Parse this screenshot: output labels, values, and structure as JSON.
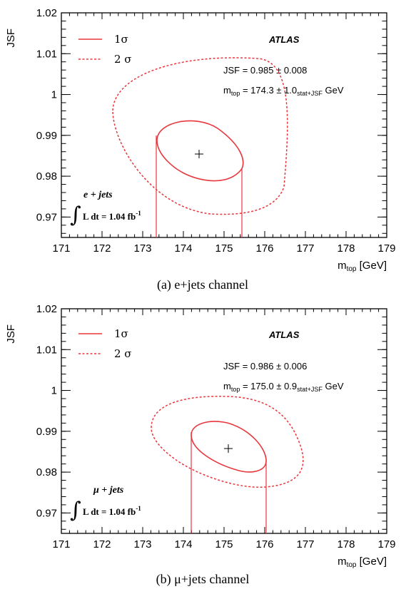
{
  "chart_data": [
    {
      "type": "contour",
      "panel": "a",
      "xlabel": "m",
      "xlabel_sub": "top",
      "xlabel_unit": " [GeV]",
      "ylabel": "JSF",
      "xlim": [
        171,
        179
      ],
      "ylim": [
        0.965,
        1.02
      ],
      "xticks": [
        "171",
        "172",
        "173",
        "174",
        "175",
        "176",
        "177",
        "178",
        "179"
      ],
      "yticks": [
        "0.97",
        "0.98",
        "0.99",
        "1",
        "1.01",
        "1.02"
      ],
      "experiment": "ATLAS",
      "legend": {
        "one_sigma": "1σ",
        "two_sigma": "2 σ"
      },
      "jsf_text": "JSF = 0.985 ± 0.008",
      "mtop_prefix": "m",
      "mtop_sub": "top",
      "mtop_value": " = 174.3 ± 1.0",
      "mtop_sub2": "stat+JSF",
      "mtop_unit": " GeV",
      "channel": "e + jets",
      "lumi_prefix": "L dt = 1.04 fb",
      "lumi_sup": "-1",
      "caption": "(a) e+jets channel",
      "best_fit": {
        "mtop": 174.3,
        "jsf": 0.985
      },
      "contours": [
        {
          "name": "1σ",
          "center": [
            174.3,
            0.9855
          ],
          "points": [
            [
              173.3,
              0.9855
            ],
            [
              173.6,
              0.9905
            ],
            [
              174.0,
              0.9925
            ],
            [
              174.6,
              0.991
            ],
            [
              175.3,
              0.9815
            ],
            [
              175.0,
              0.979
            ],
            [
              174.5,
              0.978
            ],
            [
              174.0,
              0.98
            ],
            [
              173.3,
              0.9855
            ]
          ],
          "mtop_interval": [
            173.3,
            175.3
          ]
        },
        {
          "name": "2 σ",
          "center": [
            174.3,
            0.985
          ],
          "points": [
            [
              172.3,
              0.9905
            ],
            [
              173.2,
              0.9995
            ],
            [
              174.4,
              1.0
            ],
            [
              175.9,
              0.9975
            ],
            [
              176.5,
              0.984
            ],
            [
              176.2,
              0.976
            ],
            [
              175.0,
              0.971
            ],
            [
              173.8,
              0.972
            ],
            [
              172.6,
              0.979
            ],
            [
              172.3,
              0.9905
            ]
          ]
        }
      ]
    },
    {
      "type": "contour",
      "panel": "b",
      "xlabel": "m",
      "xlabel_sub": "top",
      "xlabel_unit": " [GeV]",
      "ylabel": "JSF",
      "xlim": [
        171,
        179
      ],
      "ylim": [
        0.965,
        1.02
      ],
      "xticks": [
        "171",
        "172",
        "173",
        "174",
        "175",
        "176",
        "177",
        "178",
        "179"
      ],
      "yticks": [
        "0.97",
        "0.98",
        "0.99",
        "1",
        "1.01",
        "1.02"
      ],
      "experiment": "ATLAS",
      "legend": {
        "one_sigma": "1σ",
        "two_sigma": "2 σ"
      },
      "jsf_text": "JSF = 0.986 ± 0.006",
      "mtop_prefix": "m",
      "mtop_sub": "top",
      "mtop_value": " = 175.0 ± 0.9",
      "mtop_sub2": "stat+JSF",
      "mtop_unit": " GeV",
      "channel": "μ + jets",
      "lumi_prefix": "L dt = 1.04 fb",
      "lumi_sup": "-1",
      "caption": "(b) μ+jets channel",
      "best_fit": {
        "mtop": 175.0,
        "jsf": 0.986
      },
      "contours": [
        {
          "name": "1σ",
          "center": [
            175.0,
            0.986
          ],
          "mtop_interval": [
            174.1,
            175.9
          ]
        },
        {
          "name": "2 σ",
          "center": [
            175.0,
            0.986
          ]
        }
      ]
    }
  ]
}
